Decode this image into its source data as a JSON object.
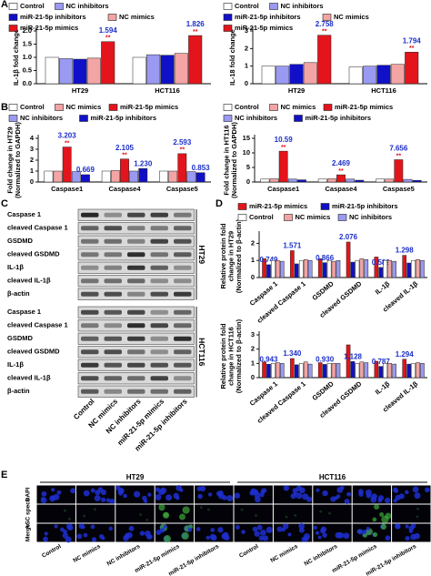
{
  "panels": [
    "A",
    "B",
    "C",
    "D",
    "E"
  ],
  "chart_data": [
    {
      "type": "bar",
      "ylabel": [
        "IL-1β fold change"
      ],
      "categories": [
        "HT29",
        "HCT116"
      ],
      "ylim": [
        0,
        2
      ],
      "yticks": [
        {
          "value": 0,
          "label": "0.0"
        },
        0.5,
        {
          "value": 1,
          "label": "1.0"
        },
        1.5,
        {
          "value": 2,
          "label": "2.0"
        }
      ],
      "series": [
        {
          "name": "Control",
          "color": "#ffffff",
          "values": [
            1,
            1
          ]
        },
        {
          "name": "NC inhibitors",
          "color": "#9a9af2",
          "values": [
            0.95,
            1.1
          ]
        },
        {
          "name": "miR-21-5p inhibitors",
          "color": "#1010c8",
          "values": [
            0.93,
            1.08
          ]
        },
        {
          "name": "NC mimics",
          "color": "#f3a4a4",
          "values": [
            0.97,
            1.15
          ]
        },
        {
          "name": "miR-21-5p mimics",
          "color": "#e3141b",
          "values": [
            1.594,
            1.826
          ],
          "significance": [
            "**",
            "**"
          ]
        }
      ]
    },
    {
      "type": "bar",
      "ylabel": [
        "IL-18 fold change"
      ],
      "categories": [
        "HT29",
        "HCT116"
      ],
      "ylim": [
        0,
        3
      ],
      "yticks": [
        0,
        1,
        2,
        3
      ],
      "series": [
        {
          "name": "Control",
          "color": "#ffffff",
          "values": [
            1,
            0.95
          ]
        },
        {
          "name": "NC inhibitors",
          "color": "#9a9af2",
          "values": [
            1.0,
            1.0
          ]
        },
        {
          "name": "miR-21-5p inhibitors",
          "color": "#1010c8",
          "values": [
            1.1,
            1.05
          ]
        },
        {
          "name": "NC mimics",
          "color": "#f3a4a4",
          "values": [
            1.2,
            1.1
          ]
        },
        {
          "name": "miR-21-5p mimics",
          "color": "#e3141b",
          "values": [
            2.758,
            1.794
          ],
          "significance": [
            "**",
            "**"
          ]
        }
      ]
    },
    {
      "type": "bar",
      "ylabel": [
        "Fold change in HT29",
        "(Normalized to GAPDH)"
      ],
      "categories": [
        "Caspase1",
        "Caspase4",
        "Caspase5"
      ],
      "ylim": [
        0,
        4
      ],
      "yticks": [
        0,
        1,
        2,
        3,
        4
      ],
      "series": [
        {
          "name": "Control",
          "color": "#ffffff",
          "values": [
            1,
            1,
            1
          ]
        },
        {
          "name": "NC mimics",
          "color": "#f3a4a4",
          "values": [
            1.0,
            1.05,
            1.0
          ]
        },
        {
          "name": "miR-21-5p mimics",
          "color": "#e3141b",
          "values": [
            3.203,
            2.105,
            2.593
          ],
          "significance": [
            "**",
            "**",
            "**"
          ]
        },
        {
          "name": "NC inhibitors",
          "color": "#9a9af2",
          "values": [
            0.95,
            1.0,
            0.95
          ]
        },
        {
          "name": "miR-21-5p inhibitors",
          "color": "#1010c8",
          "values": [
            0.669,
            1.23,
            0.853
          ],
          "value_labels": [
            "0.669",
            "1.230",
            "0.853"
          ]
        }
      ]
    },
    {
      "type": "bar",
      "ylabel": [
        "Fold change in HT116",
        "(Normalized to GAPDH)"
      ],
      "categories": [
        "Caspase1",
        "Caspase4",
        "Caspase5"
      ],
      "ylim": [
        0,
        15
      ],
      "yticks": [
        0,
        5,
        10,
        15
      ],
      "series": [
        {
          "name": "Control",
          "color": "#ffffff",
          "values": [
            1,
            1,
            1
          ]
        },
        {
          "name": "NC mimics",
          "color": "#f3a4a4",
          "values": [
            1.1,
            1.1,
            1.0
          ]
        },
        {
          "name": "miR-21-5p mimics",
          "color": "#e3141b",
          "values": [
            10.59,
            2.469,
            7.656
          ],
          "significance": [
            "**",
            "**",
            "**"
          ]
        },
        {
          "name": "NC inhibitors",
          "color": "#9a9af2",
          "values": [
            1.0,
            1.0,
            0.9
          ]
        },
        {
          "name": "miR-21-5p inhibitors",
          "color": "#1010c8",
          "values": [
            0.741,
            0.612,
            0.552
          ]
        }
      ]
    },
    {
      "type": "bar",
      "ylabel": [
        "Relative protein fold",
        "change in HT29",
        "(Normalized to β-actin)"
      ],
      "categories": [
        "Caspase 1",
        "cleaved Caspase 1",
        "GSDMD",
        "cleaved GSDMD",
        "IL-1β",
        "cleaved IL-1β"
      ],
      "ylim": [
        0,
        2.5
      ],
      "yticks": [
        0,
        1,
        2
      ],
      "series": [
        {
          "name": "miR-21-5p mimics",
          "color": "#e3141b",
          "values": [
            1.1,
            1.571,
            1.1,
            2.076,
            1.2,
            1.298
          ],
          "value_labels": [
            null,
            "1.571",
            null,
            "2.076",
            null,
            "1.298"
          ]
        },
        {
          "name": "miR-21-5p inhibitors",
          "color": "#1010c8",
          "values": [
            0.749,
            0.8,
            0.866,
            0.9,
            0.589,
            0.85
          ],
          "value_labels": [
            "0.749",
            null,
            "0.866",
            null,
            "0.589",
            null
          ]
        },
        {
          "name": "Control",
          "color": "#ffffff",
          "values": [
            1,
            1,
            1,
            1,
            1,
            1
          ]
        },
        {
          "name": "NC mimics",
          "color": "#f3a4a4",
          "values": [
            1.0,
            1.05,
            0.95,
            1.1,
            1.0,
            1.05
          ]
        },
        {
          "name": "NC inhibitors",
          "color": "#9a9af2",
          "values": [
            0.95,
            1.0,
            1.0,
            1.05,
            0.95,
            1.0
          ]
        }
      ]
    },
    {
      "type": "bar",
      "legend": false,
      "ylabel": [
        "Relative protein fold",
        "change in HCT116",
        "(Normalized to β-actin)"
      ],
      "categories": [
        "Caspase 1",
        "cleaved Caspase 1",
        "GSDMD",
        "cleaved GSDMD",
        "IL-1β",
        "cleaved IL-1β"
      ],
      "ylim": [
        0,
        3
      ],
      "yticks": [
        0,
        1,
        2,
        3
      ],
      "series": [
        {
          "name": "miR-21-5p mimics",
          "color": "#e3141b",
          "values": [
            1.1,
            1.34,
            1.05,
            2.3,
            1.15,
            1.294
          ],
          "value_labels": [
            null,
            "1.340",
            null,
            null,
            null,
            "1.294"
          ]
        },
        {
          "name": "miR-21-5p inhibitors",
          "color": "#1010c8",
          "values": [
            0.943,
            0.9,
            0.93,
            1.128,
            0.787,
            0.95
          ],
          "value_labels": [
            "0.943",
            null,
            "0.930",
            "1.128",
            "0.787",
            null
          ]
        },
        {
          "name": "Control",
          "color": "#ffffff",
          "values": [
            1,
            1,
            1,
            1,
            1,
            1
          ]
        },
        {
          "name": "NC mimics",
          "color": "#f3a4a4",
          "values": [
            1.05,
            1.1,
            1.0,
            1.1,
            1.0,
            1.05
          ]
        },
        {
          "name": "NC inhibitors",
          "color": "#9a9af2",
          "values": [
            1.0,
            0.95,
            1.0,
            1.05,
            0.95,
            1.0
          ]
        }
      ]
    }
  ],
  "blot": {
    "proteins": [
      "Caspase 1",
      "cleaved Caspase 1",
      "GSDMD",
      "cleaved GSDMD",
      "IL-1β",
      "cleaved IL-1β",
      "β-actin"
    ],
    "cell_lines": [
      "HT29",
      "HCT116"
    ],
    "lanes": [
      "Control",
      "NC mimics",
      "NC inhibitors",
      "miR-21-5p mimics",
      "miR-21-5p inhibitors"
    ]
  },
  "microscopy": {
    "cell_lines": [
      "HT29",
      "HCT116"
    ],
    "channels": [
      "DAPI",
      "ASC speck",
      "Merge"
    ],
    "lanes": [
      "Control",
      "NC mimics",
      "NC inhibitors",
      "miR-21-5p mimics",
      "miR-21-5p inhibitors"
    ]
  }
}
